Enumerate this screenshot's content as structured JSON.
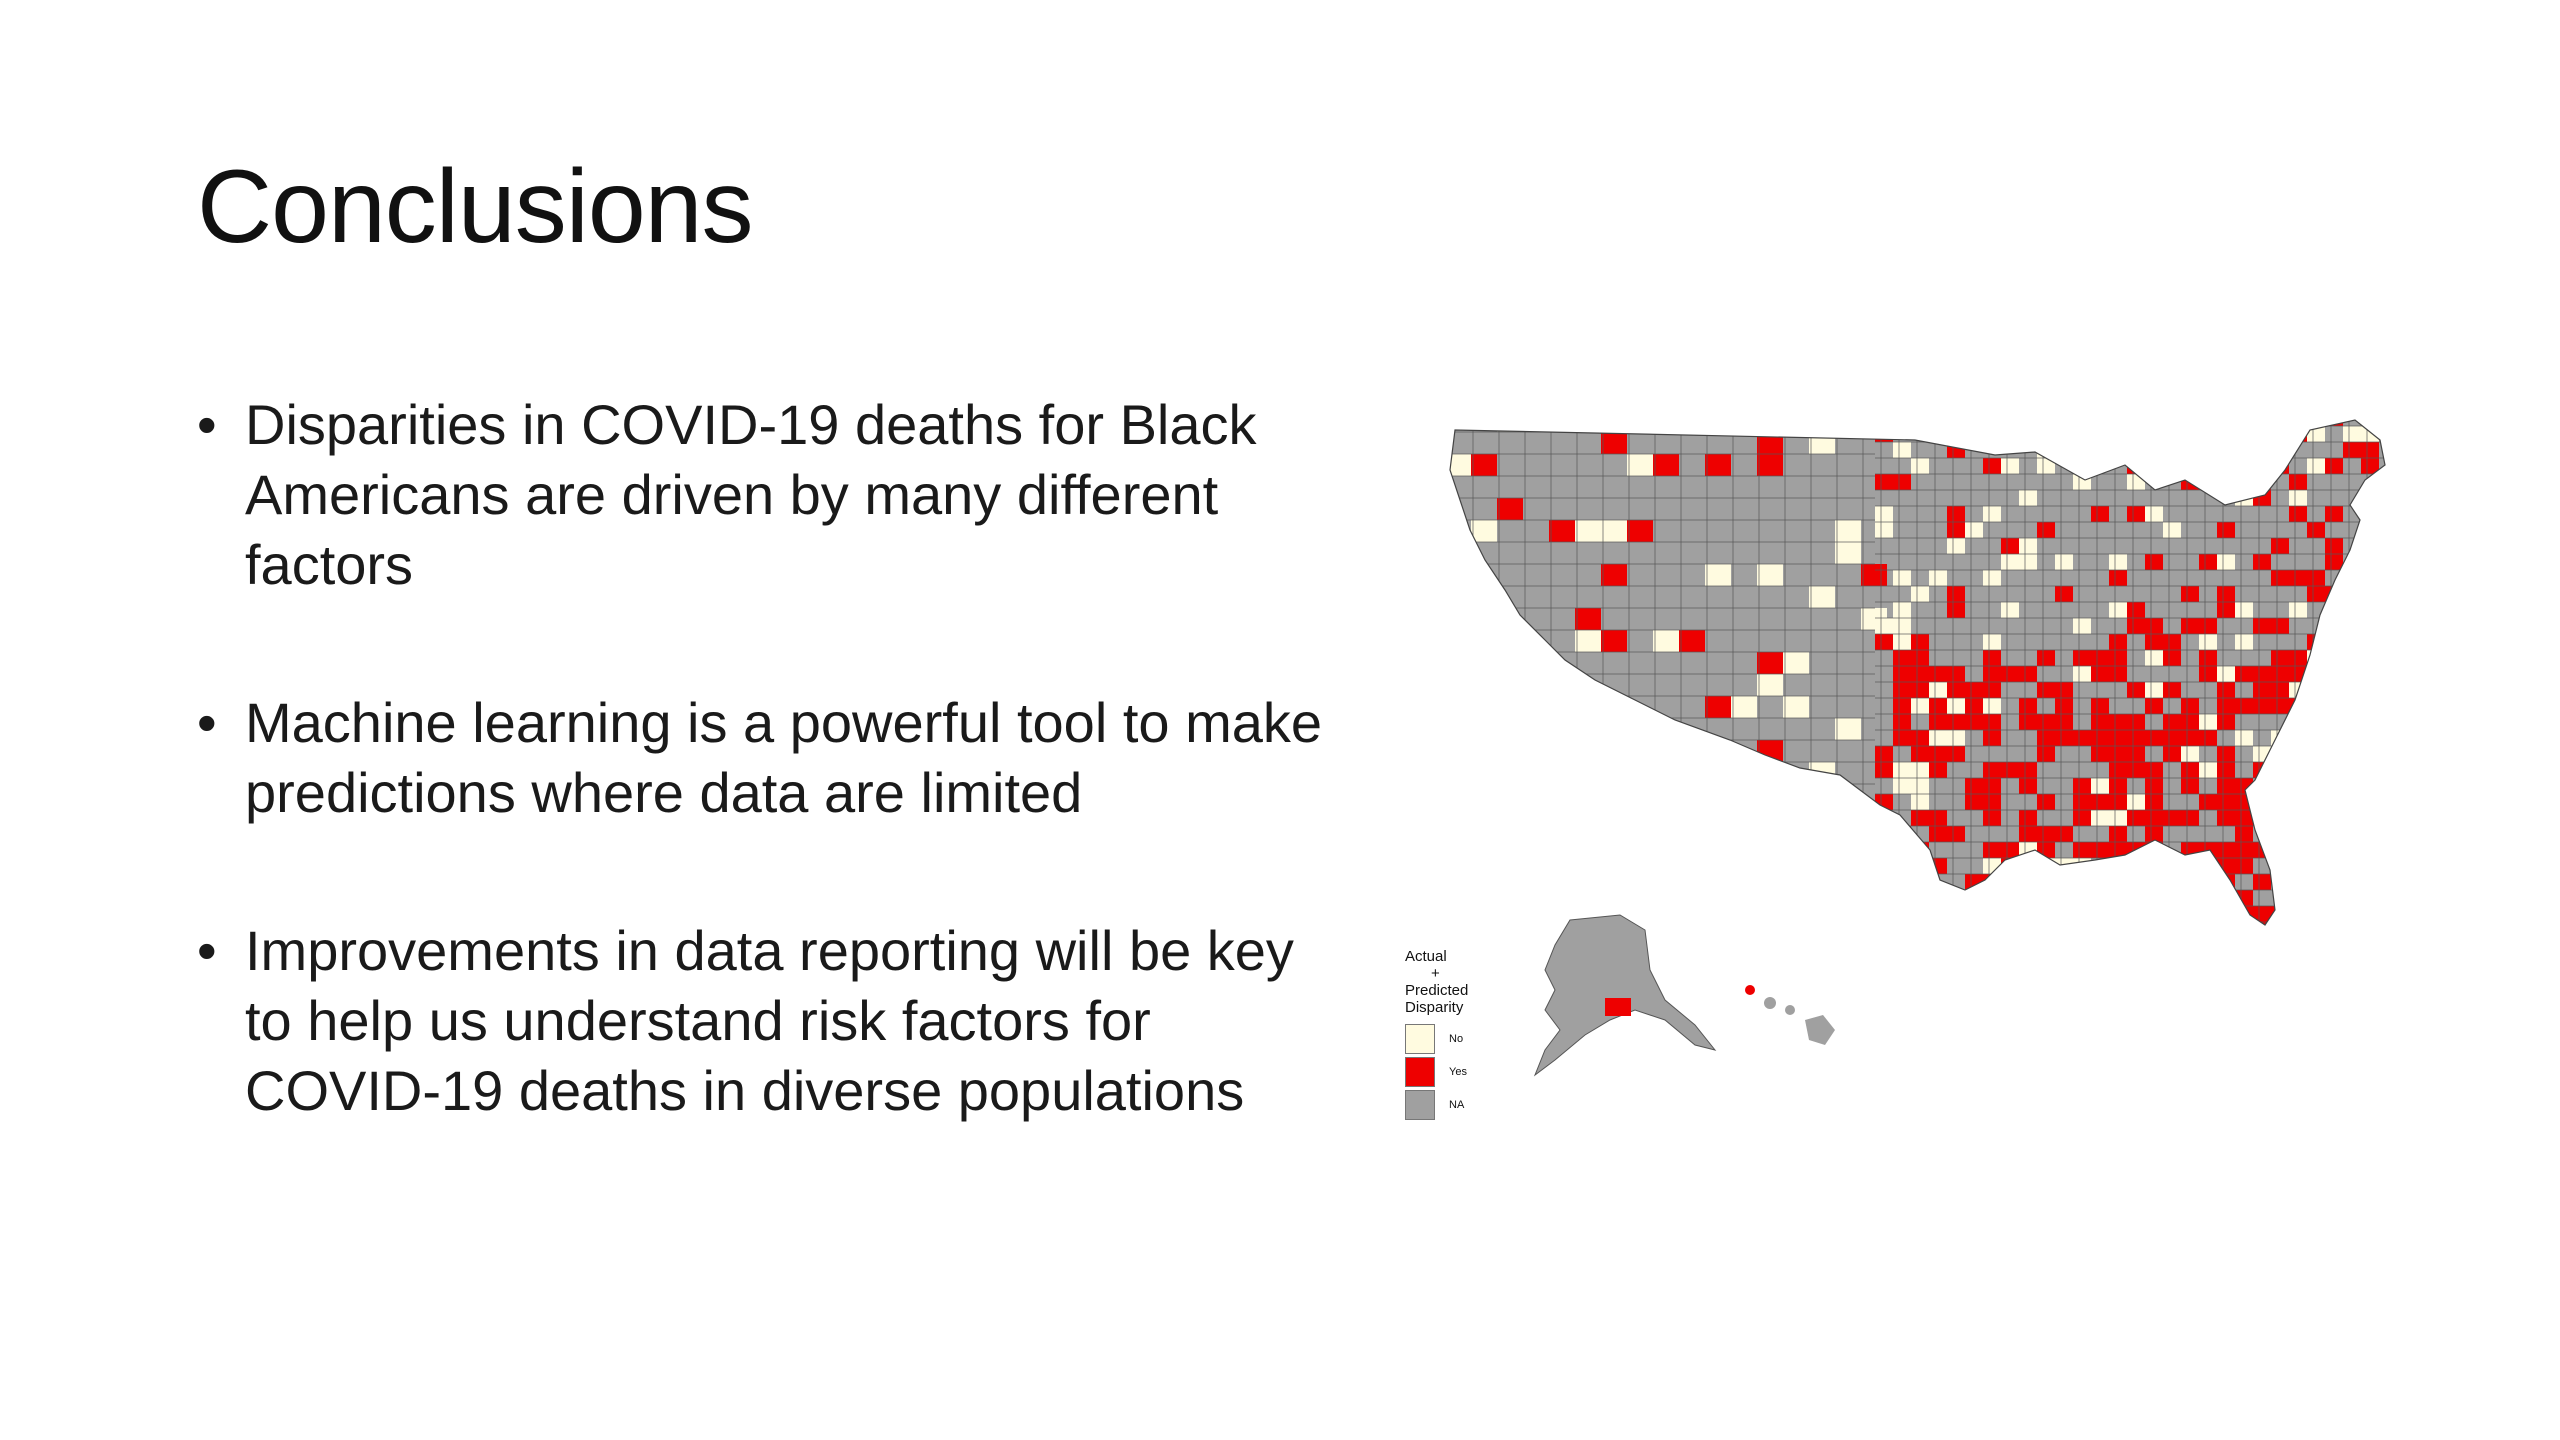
{
  "slide": {
    "title": "Conclusions",
    "bullets": [
      "Disparities in COVID-19 deaths for Black Americans are driven by many different factors",
      "Machine learning is a powerful tool to make predictions where data are limited",
      "Improvements in data reporting will be key to help us understand risk factors for COVID-19 deaths in diverse populations"
    ],
    "bullet_symbol": "•"
  },
  "map": {
    "colors": {
      "no": "#fffbe0",
      "yes": "#ee0000",
      "na": "#a0a0a0",
      "border": "#555555"
    },
    "legend": {
      "title_line1": "Actual",
      "title_line2": "+",
      "title_line3": "Predicted",
      "title_line4": "Disparity",
      "items": [
        {
          "label": "No",
          "color": "#fffbe0"
        },
        {
          "label": "Yes",
          "color": "#ee0000"
        },
        {
          "label": "NA",
          "color": "#a0a0a0"
        }
      ]
    }
  }
}
